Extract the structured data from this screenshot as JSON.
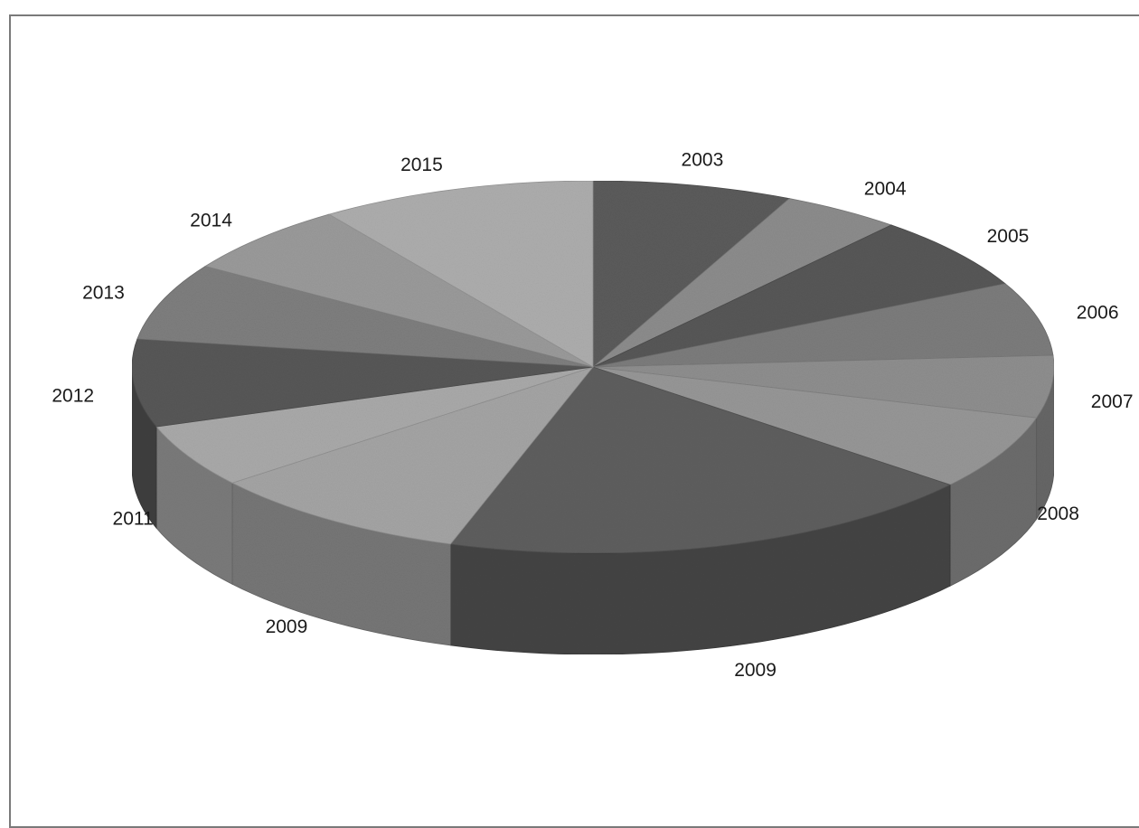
{
  "chart_data": {
    "type": "pie",
    "style": "3d",
    "title": "",
    "start_angle_deg": 90,
    "direction": "clockwise",
    "labels": [
      "2003",
      "2004",
      "2005",
      "2006",
      "2007",
      "2008",
      "2009",
      "2009",
      "2011",
      "2012",
      "2013",
      "2014",
      "2015"
    ],
    "values": [
      7.0,
      4.2,
      6.4,
      6.4,
      5.4,
      6.5,
      19.1,
      9.3,
      5.5,
      7.6,
      6.7,
      6.2,
      9.7
    ],
    "unit": "%",
    "colors": [
      "#5b5b5b",
      "#8c8c8c",
      "#575757",
      "#7c7c7c",
      "#8e8e8e",
      "#969696",
      "#5e5e5e",
      "#a4a4a4",
      "#a9a9a9",
      "#575757",
      "#7e7e7e",
      "#9a9a9a",
      "#adadad"
    ],
    "legend": "none",
    "data_labels": "outside"
  }
}
